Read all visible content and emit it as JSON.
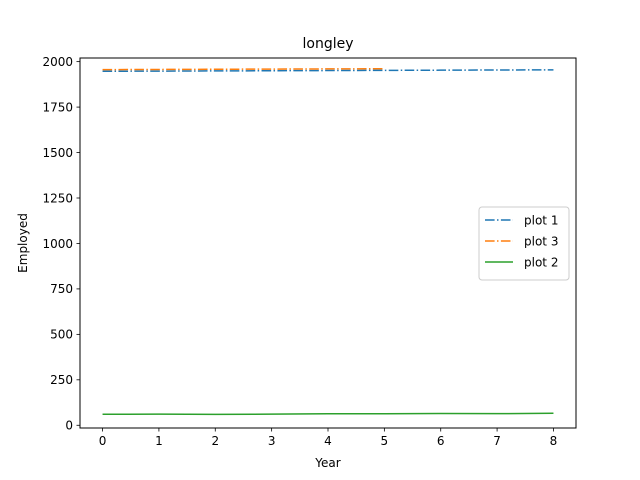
{
  "chart_data": {
    "type": "line",
    "title": "longley",
    "xlabel": "Year",
    "ylabel": "Employed",
    "xlim": [
      -0.4,
      8.4
    ],
    "ylim": [
      -15,
      2020
    ],
    "xticks": [
      0,
      1,
      2,
      3,
      4,
      5,
      6,
      7,
      8
    ],
    "yticks": [
      0,
      250,
      500,
      750,
      1000,
      1250,
      1500,
      1750,
      2000
    ],
    "grid": false,
    "legend_position": "center-right",
    "series": [
      {
        "name": "plot 1",
        "color": "#1f77b4",
        "style": "dashdot",
        "x": [
          0,
          1,
          2,
          3,
          4,
          5,
          6,
          7,
          8
        ],
        "y": [
          1947,
          1948,
          1949,
          1950,
          1951,
          1952,
          1953,
          1954,
          1955
        ]
      },
      {
        "name": "plot 3",
        "color": "#ff7f0e",
        "style": "dashdot",
        "x": [
          0,
          1,
          2,
          3,
          4,
          5
        ],
        "y": [
          1956,
          1957,
          1958,
          1959,
          1960,
          1961
        ]
      },
      {
        "name": "plot 2",
        "color": "#2ca02c",
        "style": "solid",
        "x": [
          0,
          1,
          2,
          3,
          4,
          5,
          6,
          7,
          8
        ],
        "y": [
          60.3,
          61.1,
          60.2,
          61.2,
          63.2,
          63.6,
          65.0,
          63.8,
          66.0
        ]
      }
    ]
  }
}
